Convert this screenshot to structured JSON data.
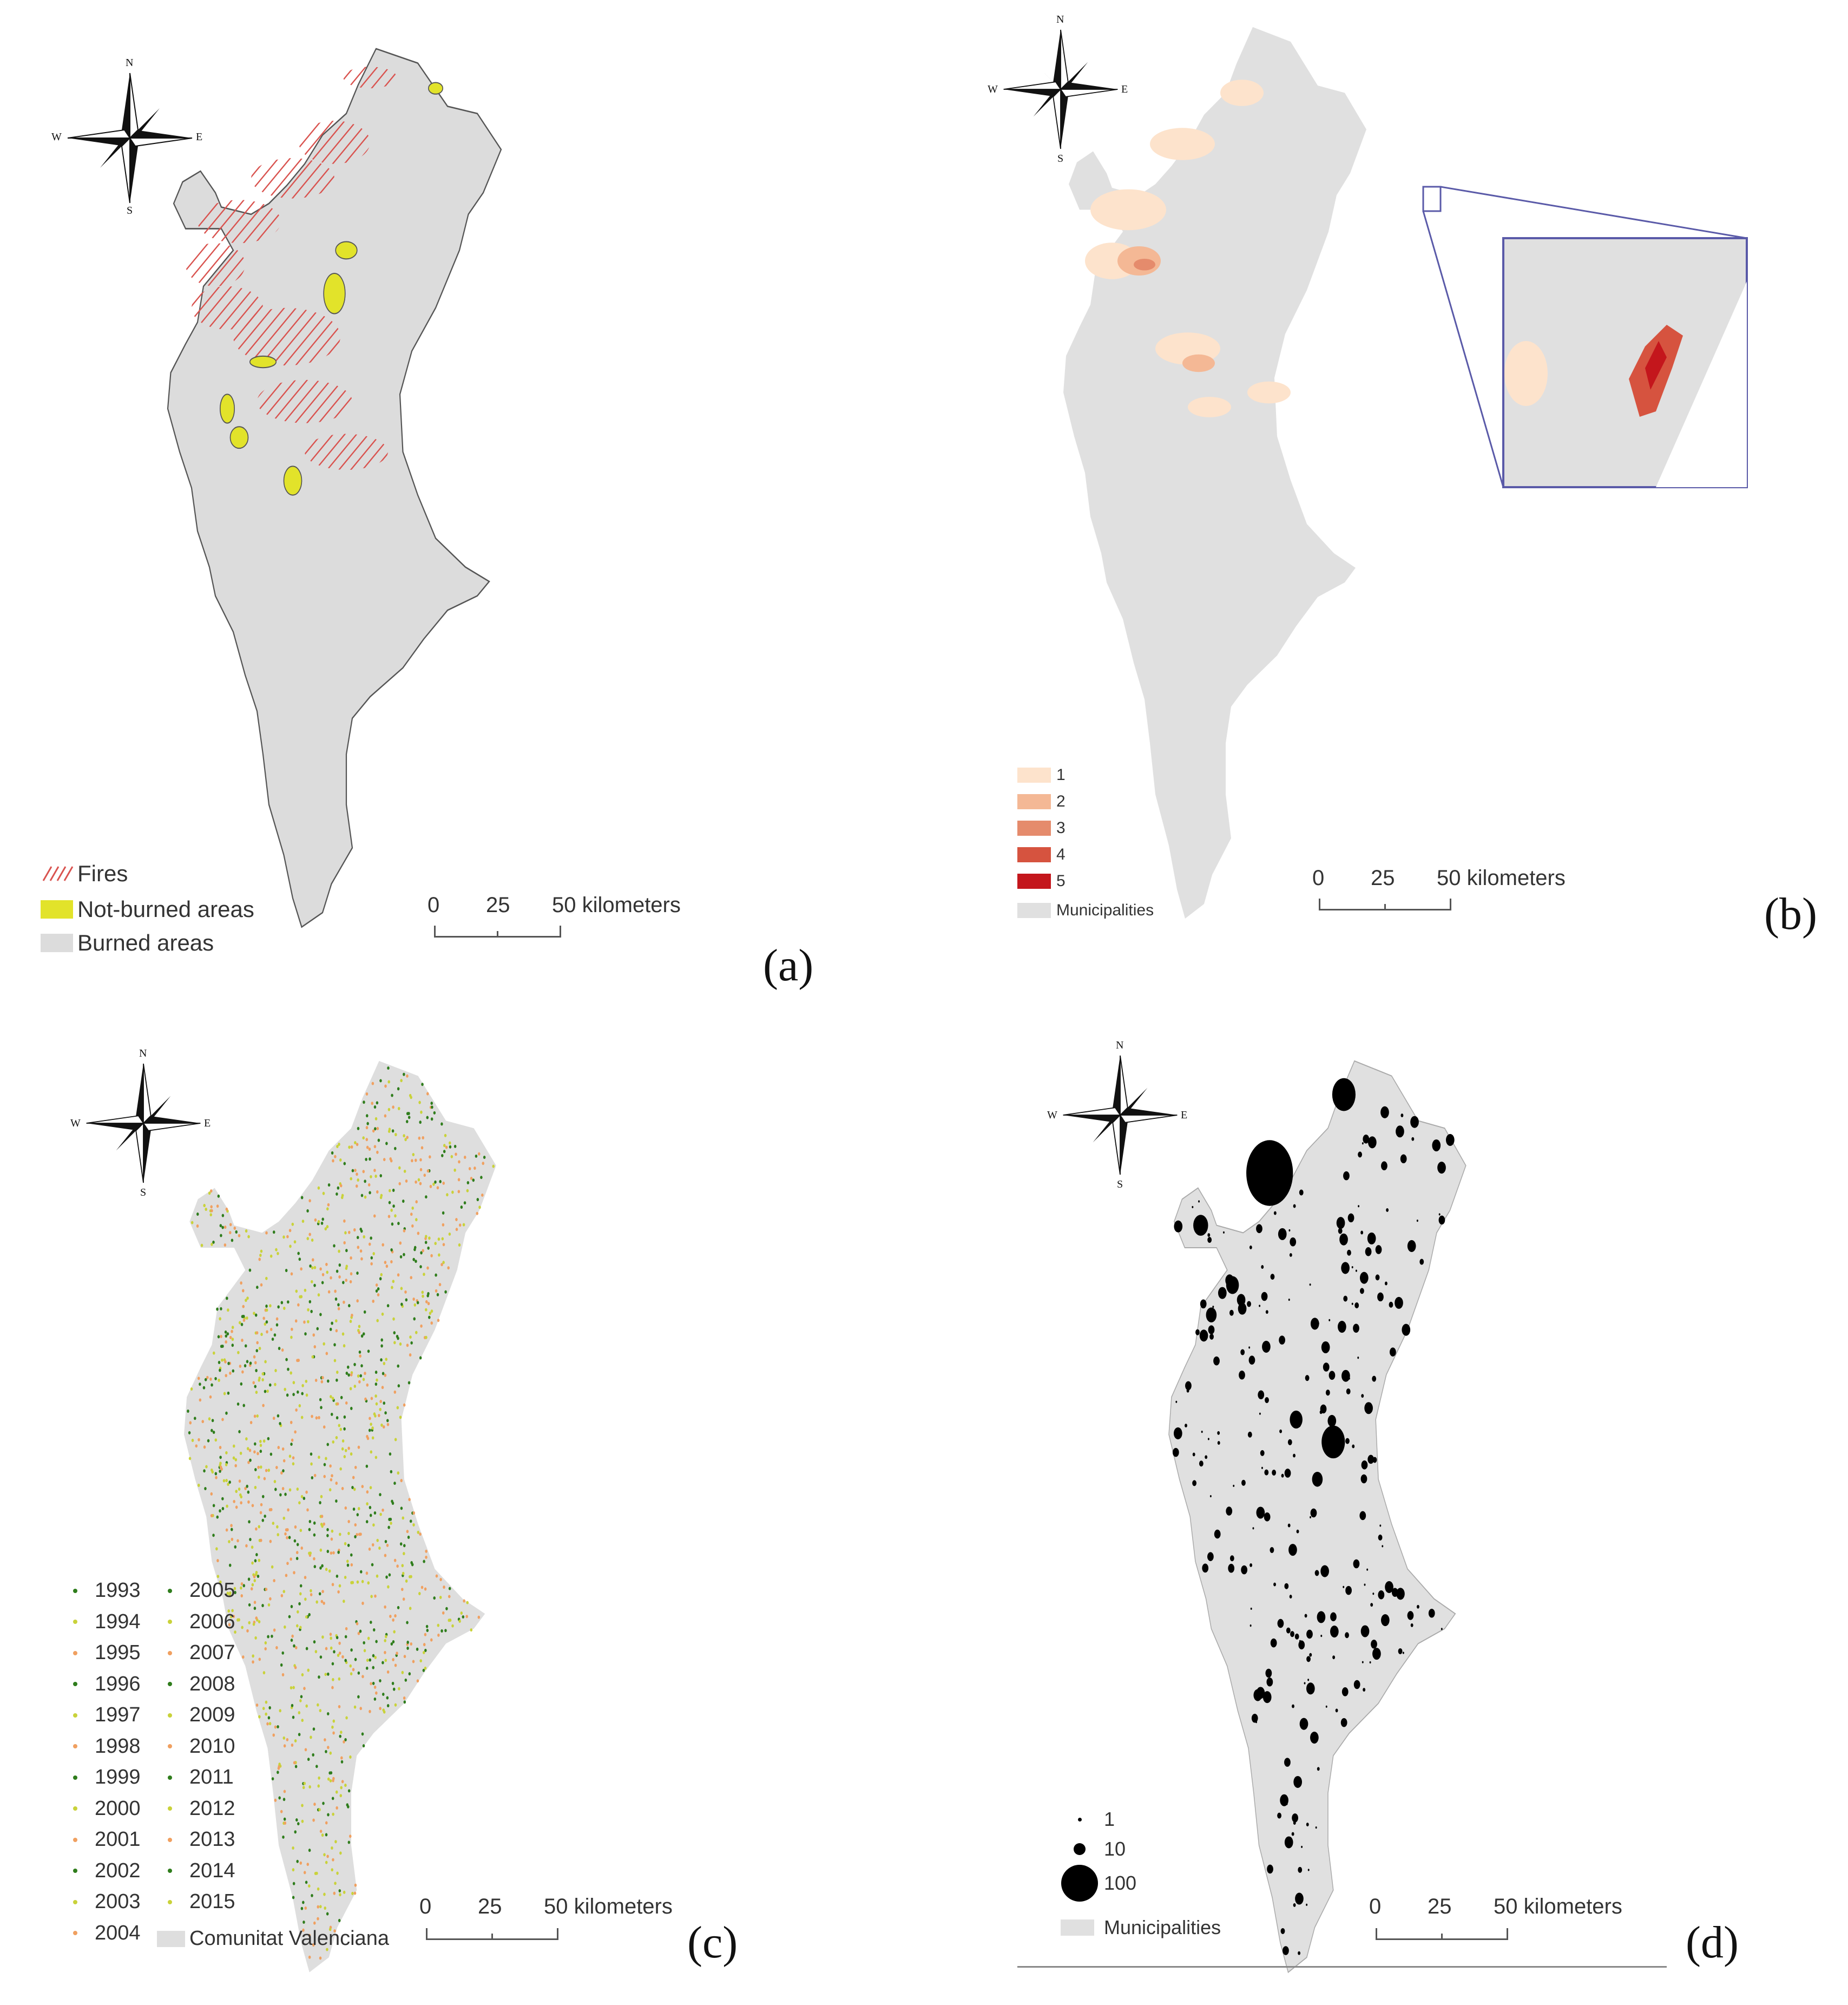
{
  "compass": {
    "n": "N",
    "s": "S",
    "e": "E",
    "w": "W"
  },
  "scale": {
    "zero": "0",
    "mid": "25",
    "end": "50 kilometers"
  },
  "panel_a": {
    "label": "(a)",
    "legend": [
      {
        "text": "Fires",
        "color": "#d9534f",
        "icon": "hatch-swatch"
      },
      {
        "text": "Not-burned areas",
        "color": "#e2e32a",
        "icon": "solid-swatch"
      },
      {
        "text": "Burned areas",
        "color": "#dcdcdc",
        "icon": "solid-swatch"
      }
    ]
  },
  "panel_b": {
    "label": "(b)",
    "legend": [
      {
        "text": "1",
        "color": "#fde3cc"
      },
      {
        "text": "2",
        "color": "#f4b895"
      },
      {
        "text": "3",
        "color": "#e58b6c"
      },
      {
        "text": "4",
        "color": "#d6533f"
      },
      {
        "text": "5",
        "color": "#c4161c"
      },
      {
        "text": "Municipalities",
        "color": "#e0e0e0"
      }
    ]
  },
  "panel_c": {
    "label": "(c)",
    "years_left": [
      "1993",
      "1994",
      "1995",
      "1996",
      "1997",
      "1998",
      "1999",
      "2000",
      "2001",
      "2002",
      "2003",
      "2004"
    ],
    "years_right": [
      "2005",
      "2006",
      "2007",
      "2008",
      "2009",
      "2010",
      "2011",
      "2012",
      "2013",
      "2014",
      "2015"
    ],
    "region": "Comunitat Valenciana",
    "colors": {
      "green": "#2f7d1c",
      "yellow": "#c9d23a",
      "orange": "#f0a060"
    }
  },
  "panel_d": {
    "label": "(d)",
    "legend": [
      {
        "text": "1"
      },
      {
        "text": "10"
      },
      {
        "text": "100"
      }
    ],
    "municipalities": "Municipalities"
  }
}
